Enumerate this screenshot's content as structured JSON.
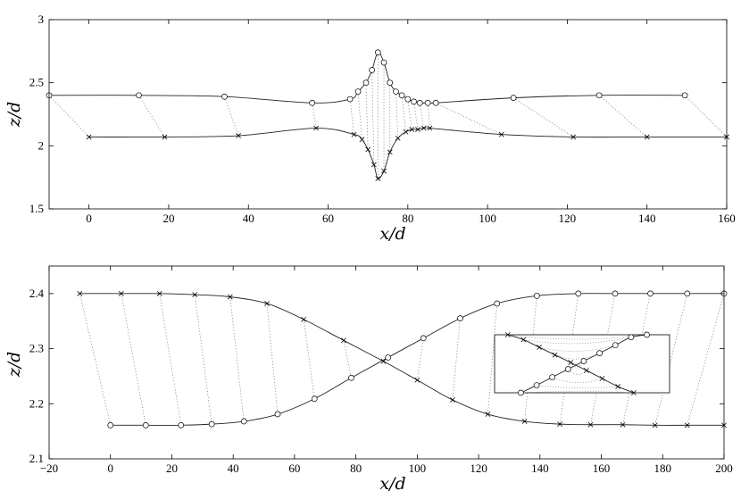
{
  "chart_data": [
    {
      "type": "line",
      "xlabel": "x/d",
      "ylabel": "z/d",
      "xlim": [
        -10,
        160
      ],
      "ylim": [
        1.5,
        3
      ],
      "xticks": [
        "0",
        "20",
        "40",
        "60",
        "80",
        "100",
        "120",
        "140",
        "160"
      ],
      "yticks": [
        "1.5",
        "2",
        "2.5",
        "3"
      ],
      "series": [
        {
          "marker": "circle",
          "x": [
            -10,
            12.5,
            34,
            56,
            65.5,
            67.5,
            69.5,
            71,
            72.5,
            74,
            75.5,
            77,
            78.5,
            80,
            81.5,
            83,
            85,
            87,
            106.5,
            128,
            149.5
          ],
          "y": [
            2.4,
            2.4,
            2.39,
            2.34,
            2.37,
            2.43,
            2.5,
            2.6,
            2.74,
            2.66,
            2.5,
            2.43,
            2.4,
            2.37,
            2.35,
            2.34,
            2.34,
            2.34,
            2.38,
            2.4,
            2.4
          ]
        },
        {
          "marker": "cross",
          "x": [
            0,
            19,
            37.5,
            57,
            66.5,
            68.5,
            70,
            71.5,
            72.5,
            74,
            75.5,
            77.5,
            79.5,
            81,
            82.5,
            84,
            85.5,
            103.5,
            121.5,
            140,
            160
          ],
          "y": [
            2.07,
            2.07,
            2.08,
            2.14,
            2.09,
            2.05,
            1.97,
            1.85,
            1.74,
            1.8,
            1.95,
            2.06,
            2.11,
            2.13,
            2.13,
            2.14,
            2.14,
            2.09,
            2.07,
            2.07,
            2.07
          ]
        }
      ]
    },
    {
      "type": "line",
      "xlabel": "x/d",
      "ylabel": "z/d",
      "xlim": [
        -20,
        200
      ],
      "ylim": [
        2.1,
        2.45
      ],
      "xticks": [
        "−20",
        "0",
        "20",
        "40",
        "60",
        "80",
        "100",
        "120",
        "140",
        "160",
        "180",
        "200"
      ],
      "yticks": [
        "2.1",
        "2.2",
        "2.3",
        "2.4"
      ],
      "series": [
        {
          "marker": "cross",
          "x": [
            -10,
            3.5,
            16,
            27.5,
            39,
            51,
            63,
            76,
            89,
            100,
            111.5,
            123,
            135,
            146.5,
            156.5,
            167,
            177.5,
            188,
            200
          ],
          "y": [
            2.4,
            2.4,
            2.4,
            2.398,
            2.394,
            2.382,
            2.353,
            2.315,
            2.277,
            2.243,
            2.207,
            2.181,
            2.168,
            2.163,
            2.162,
            2.162,
            2.161,
            2.161,
            2.161
          ]
        },
        {
          "marker": "circle",
          "x": [
            0,
            11.5,
            23,
            33,
            43.5,
            54.5,
            66.5,
            78.5,
            90.5,
            102,
            114,
            126,
            139,
            152.5,
            164.5,
            176,
            188,
            200
          ],
          "y": [
            2.161,
            2.161,
            2.161,
            2.163,
            2.168,
            2.181,
            2.209,
            2.247,
            2.284,
            2.319,
            2.355,
            2.382,
            2.396,
            2.4,
            2.4,
            2.4,
            2.4,
            2.4
          ]
        }
      ]
    }
  ]
}
